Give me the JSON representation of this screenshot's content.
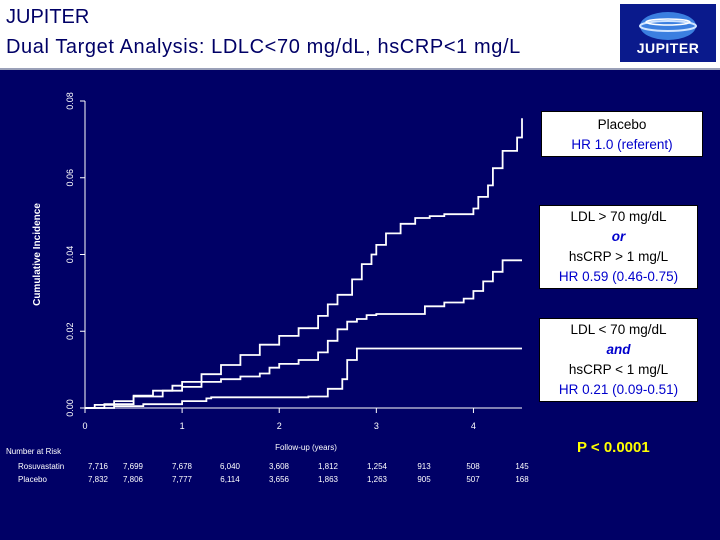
{
  "header": {
    "title_line1": "JUPITER",
    "title_line2": "Dual Target Analysis: LDLC<70 mg/dL, hsCRP<1 mg/L",
    "logo_text": "JUPITER"
  },
  "colors": {
    "background": "#000066",
    "curves": "#ffffff",
    "hr_text": "#0000cc",
    "p_value": "#ffff00"
  },
  "chart_data": {
    "type": "line",
    "ylabel": "Cumulative Incidence",
    "xlabel": "Follow-up (years)",
    "xlim": [
      0,
      4.5
    ],
    "ylim": [
      0,
      0.08
    ],
    "x_ticks": [
      "0",
      "1",
      "2",
      "3",
      "4"
    ],
    "y_ticks": [
      "0.00",
      "0.02",
      "0.04",
      "0.06",
      "0.08"
    ],
    "series": [
      {
        "id": "placebo",
        "x": [
          0,
          0.1,
          0.3,
          0.5,
          0.7,
          0.9,
          1.0,
          1.2,
          1.4,
          1.6,
          1.8,
          2.0,
          2.2,
          2.4,
          2.5,
          2.6,
          2.75,
          2.85,
          2.95,
          3.0,
          3.1,
          3.25,
          3.4,
          3.55,
          3.7,
          3.85,
          4.0,
          4.05,
          4.15,
          4.2,
          4.3,
          4.45,
          4.5
        ],
        "y": [
          0,
          0.0008,
          0.0018,
          0.0032,
          0.0045,
          0.0058,
          0.0068,
          0.0088,
          0.0112,
          0.0138,
          0.0165,
          0.0188,
          0.0208,
          0.024,
          0.027,
          0.0295,
          0.0335,
          0.0375,
          0.04,
          0.0425,
          0.0455,
          0.048,
          0.0495,
          0.05,
          0.0505,
          0.0505,
          0.052,
          0.055,
          0.058,
          0.0625,
          0.067,
          0.0705,
          0.0755
        ]
      },
      {
        "id": "ldl-or-hscrp",
        "x": [
          0,
          0.2,
          0.5,
          0.8,
          1.0,
          1.2,
          1.4,
          1.6,
          1.8,
          1.9,
          2.0,
          2.2,
          2.4,
          2.5,
          2.6,
          2.7,
          2.8,
          2.9,
          3.0,
          3.2,
          3.5,
          3.7,
          3.9,
          4.0,
          4.1,
          4.2,
          4.3,
          4.5
        ],
        "y": [
          0,
          0.001,
          0.003,
          0.0045,
          0.0055,
          0.0068,
          0.0075,
          0.0082,
          0.009,
          0.0105,
          0.0115,
          0.0125,
          0.0145,
          0.0175,
          0.0205,
          0.0225,
          0.0232,
          0.0242,
          0.0245,
          0.0245,
          0.0265,
          0.0275,
          0.0285,
          0.0305,
          0.033,
          0.0355,
          0.0385,
          0.0385
        ]
      },
      {
        "id": "ldl-and-hscrp",
        "x": [
          0,
          0.3,
          0.6,
          1.0,
          1.25,
          1.3,
          2.3,
          2.5,
          2.65,
          2.7,
          2.8,
          4.5
        ],
        "y": [
          0,
          0.0005,
          0.001,
          0.0018,
          0.0025,
          0.0028,
          0.003,
          0.005,
          0.0075,
          0.0125,
          0.0155,
          0.0155
        ]
      }
    ],
    "risk_table": {
      "title": "Number at Risk",
      "rows": [
        {
          "label": "Rosuvastatin",
          "values": [
            "7,716",
            "7,699",
            "7,678",
            "6,040",
            "3,608",
            "1,812",
            "1,254",
            "913",
            "508",
            "145"
          ]
        },
        {
          "label": "Placebo",
          "values": [
            "7,832",
            "7,806",
            "7,777",
            "6,114",
            "3,656",
            "1,863",
            "1,263",
            "905",
            "507",
            "168"
          ]
        }
      ]
    }
  },
  "annotations": {
    "placebo": {
      "line1": "Placebo",
      "hr": "HR 1.0 (referent)"
    },
    "ldl_or": {
      "line1": "LDL > 70 mg/dL",
      "conj": "or",
      "line3": "hsCRP > 1 mg/L",
      "hr": "HR 0.59 (0.46-0.75)"
    },
    "ldl_and": {
      "line1": "LDL < 70 mg/dL",
      "conj": "and",
      "line3": "hsCRP < 1 mg/L",
      "hr": "HR 0.21 (0.09-0.51)"
    }
  },
  "p_value": "P < 0.0001"
}
